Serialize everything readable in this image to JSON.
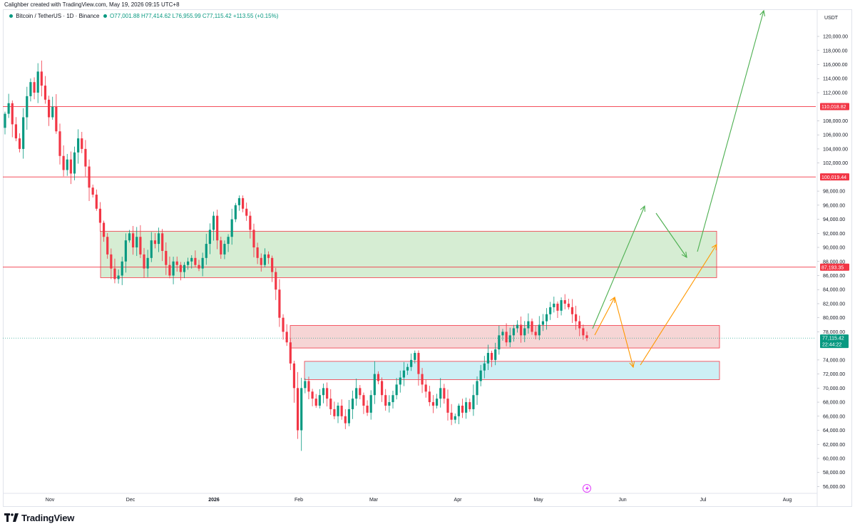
{
  "header": {
    "created_by": "Calighber created with TradingView.com, May 19, 2026 09:15 UTC+8"
  },
  "legend": {
    "symbol": "Bitcoin / TetherUS · 1D · Binance",
    "open": "O77,001.88",
    "high": "H77,414.62",
    "low": "L76,955.99",
    "close": "C77,115.42",
    "change": "+113.55 (+0.15%)"
  },
  "price_axis": {
    "currency": "USDT",
    "ticks": [
      "120,000.00",
      "118,000.00",
      "116,000.00",
      "114,000.00",
      "112,000.00",
      "108,000.00",
      "106,000.00",
      "104,000.00",
      "102,000.00",
      "98,000.00",
      "96,000.00",
      "94,000.00",
      "92,000.00",
      "90,000.00",
      "88,000.00",
      "86,000.00",
      "84,000.00",
      "82,000.00",
      "80,000.00",
      "78,000.00",
      "74,000.00",
      "72,000.00",
      "70,000.00",
      "68,000.00",
      "66,000.00",
      "64,000.00",
      "62,000.00",
      "60,000.00",
      "58,000.00",
      "56,000.00"
    ],
    "last_price_label": "77,115.42",
    "countdown": "22:44:22"
  },
  "time_axis": {
    "labels": [
      "Nov",
      "Dec",
      "2026",
      "Feb",
      "Mar",
      "Apr",
      "May",
      "Jun",
      "Jul",
      "Aug"
    ]
  },
  "levels": [
    {
      "value": 110018.82,
      "label": "110,018.82"
    },
    {
      "value": 100019.44,
      "label": "100,019.44"
    },
    {
      "value": 87193.35,
      "label": "87,193.35"
    }
  ],
  "zones": [
    {
      "name": "green-supply-zone",
      "top": 92300,
      "bottom": 85700,
      "fill": "#d6edd3",
      "stroke": "#f23645"
    },
    {
      "name": "red-resistance-zone",
      "top": 78900,
      "bottom": 75700,
      "fill": "#f6d5d5",
      "stroke": "#f23645"
    },
    {
      "name": "cyan-support-zone",
      "top": 73800,
      "bottom": 71200,
      "fill": "#cdeff5",
      "stroke": "#f23645"
    }
  ],
  "colors": {
    "up": "#089981",
    "down": "#f23645",
    "level": "#f23645",
    "green_arrow": "#4caf50",
    "orange_arrow": "#ff9800",
    "axis_text": "#131722",
    "grid": "#e0e3eb"
  },
  "chart_data": {
    "type": "candlestick",
    "symbol": "BTCUSDT",
    "timeframe": "1D",
    "y_range": [
      55000,
      123000
    ],
    "last_price": 77115.42,
    "closes_approx": [
      109000,
      110500,
      107500,
      105500,
      104000,
      108500,
      111500,
      113500,
      112000,
      115000,
      113000,
      111000,
      108500,
      110000,
      106500,
      103000,
      101000,
      102500,
      100500,
      103500,
      105500,
      104000,
      101500,
      98500,
      97500,
      95500,
      93500,
      91500,
      89000,
      87000,
      85500,
      86000,
      88000,
      91000,
      92000,
      90000,
      91500,
      89000,
      87000,
      88500,
      91000,
      90500,
      92000,
      89500,
      87500,
      86000,
      88000,
      87500,
      86500,
      87500,
      88000,
      88500,
      87500,
      87000,
      88500,
      90500,
      92500,
      94500,
      91000,
      89000,
      90500,
      91500,
      94000,
      96000,
      97000,
      95500,
      94500,
      92500,
      90000,
      88500,
      87500,
      89000,
      88500,
      86500,
      84000,
      80000,
      78000,
      76500,
      73500,
      70000,
      64000,
      70000,
      71000,
      69500,
      68500,
      67500,
      69000,
      70000,
      68500,
      67000,
      66000,
      67500,
      66000,
      65000,
      67000,
      68500,
      70000,
      69000,
      67500,
      66500,
      69000,
      72000,
      71000,
      69000,
      67500,
      68000,
      69000,
      70500,
      71500,
      72500,
      73000,
      74000,
      75000,
      72000,
      70500,
      69500,
      68000,
      67500,
      68500,
      70000,
      68500,
      66500,
      65500,
      66000,
      67500,
      66500,
      68000,
      67000,
      69000,
      71000,
      72500,
      73500,
      75000,
      74000,
      75500,
      77500,
      78000,
      76500,
      77500,
      78500,
      79000,
      77500,
      78500,
      79500,
      78000,
      77500,
      79000,
      79500,
      80500,
      81500,
      82000,
      81000,
      82500,
      82000,
      81500,
      80500,
      79500,
      78500,
      77500,
      77115
    ]
  }
}
